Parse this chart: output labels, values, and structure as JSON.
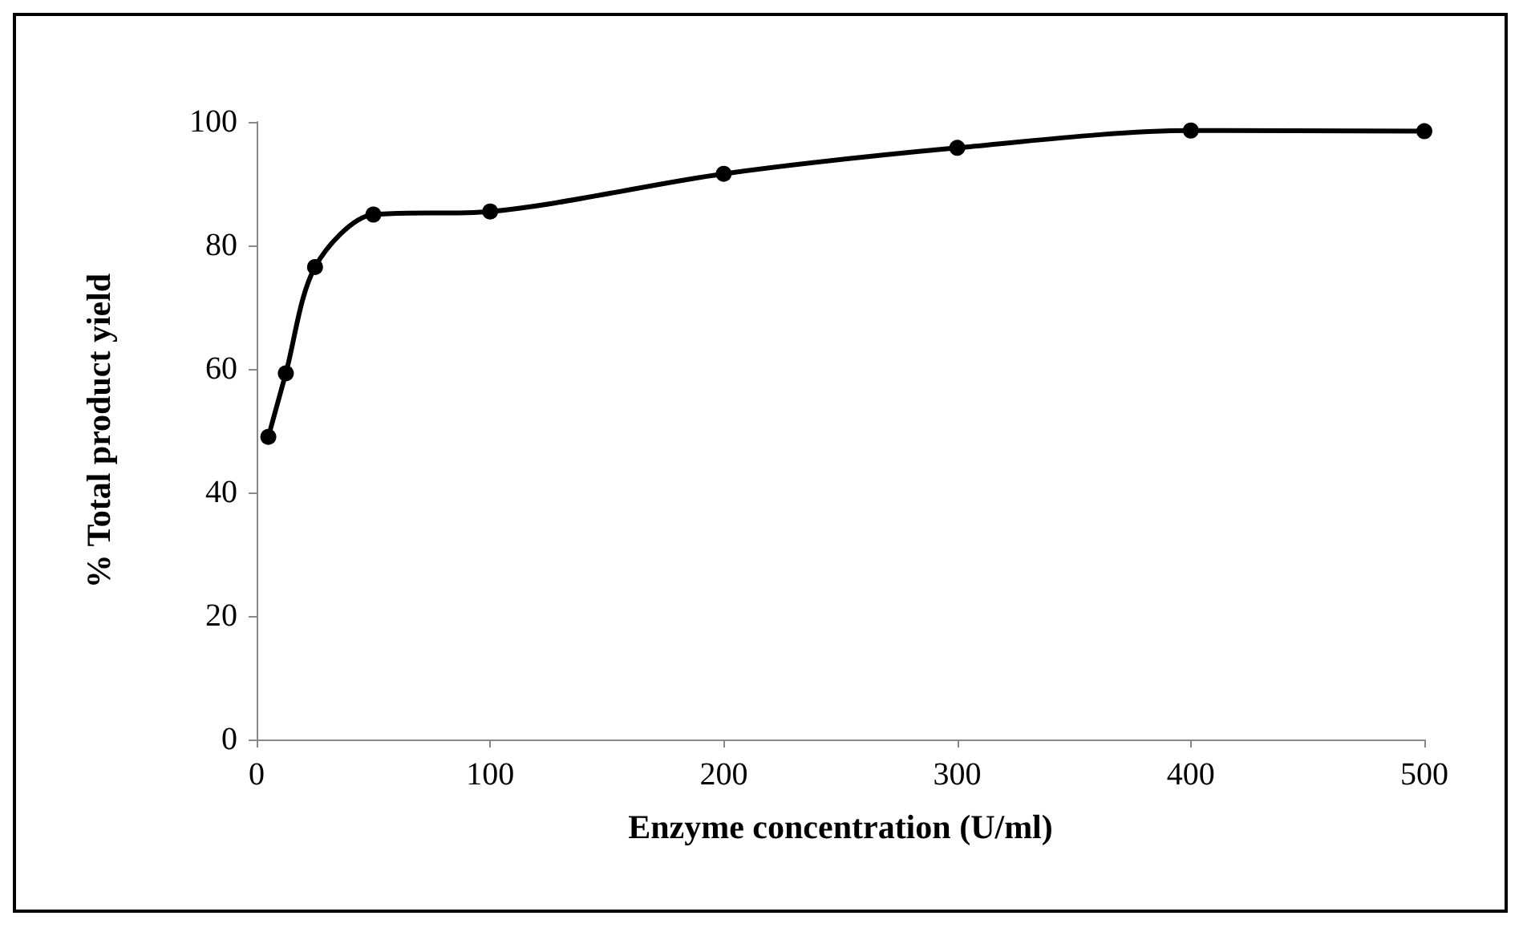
{
  "chart_data": {
    "type": "line",
    "xlabel": "Enzyme concentration (U/ml)",
    "ylabel": "% Total product yield",
    "x": [
      5,
      12.5,
      25,
      50,
      100,
      200,
      300,
      400,
      500
    ],
    "series": [
      {
        "color": "#000000",
        "values": [
          49,
          59.3,
          76.5,
          85,
          85.5,
          91.6,
          95.8,
          98.6,
          98.5
        ]
      }
    ],
    "xlim": [
      0,
      500
    ],
    "xticks": [
      0,
      100,
      200,
      300,
      400,
      500
    ],
    "ylim": [
      0,
      100
    ],
    "yticks": [
      0,
      20,
      40,
      60,
      80,
      100
    ],
    "grid": false,
    "marker": "circle",
    "line_style": "solid"
  }
}
